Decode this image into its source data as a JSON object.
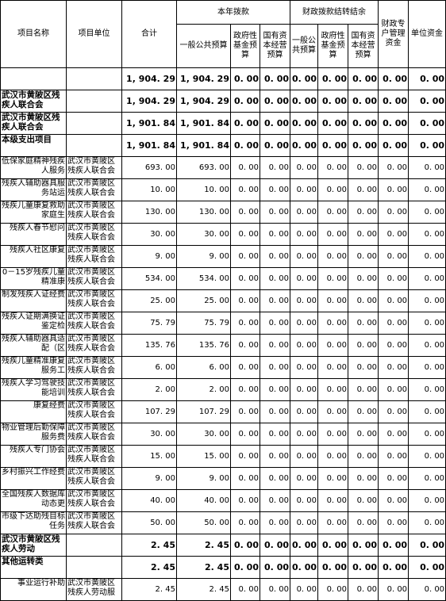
{
  "headers": {
    "project_name": "项目名称",
    "project_unit": "项目单位",
    "total": "合计",
    "current_year": "本年拨款",
    "carryover": "财政拨款结转结余",
    "general_budget": "一般公共预算",
    "gov_fund": "政府性基金预算",
    "state_capital": "国有资本经营预算",
    "carry_general": "一般公共预算",
    "carry_gov_fund": "政府性基金预算",
    "carry_state_capital": "国有资本经营预算",
    "fiscal_special": "财政专户管理资金",
    "unit_fund": "单位资金"
  },
  "rows": [
    {
      "kind": "total",
      "name": "",
      "unit": "",
      "total": "1, 904. 29",
      "general": "1, 904. 29",
      "c3": "0. 00",
      "c4": "0. 00",
      "c5": "0. 00",
      "c6": "0. 00",
      "c7": "0. 00",
      "c8": "0. 00",
      "c9": "0. 00"
    },
    {
      "kind": "group",
      "name": "武汉市黄陂区残疾人联合会",
      "unit": "",
      "total": "1, 904. 29",
      "general": "1, 904. 29",
      "c3": "0. 00",
      "c4": "0. 00",
      "c5": "0. 00",
      "c6": "0. 00",
      "c7": "0. 00",
      "c8": "0. 00",
      "c9": "0. 00"
    },
    {
      "kind": "group",
      "name": "武汉市黄陂区残疾人联合会",
      "unit": "",
      "total": "1, 901. 84",
      "general": "1, 901. 84",
      "c3": "0. 00",
      "c4": "0. 00",
      "c5": "0. 00",
      "c6": "0. 00",
      "c7": "0. 00",
      "c8": "0. 00",
      "c9": "0. 00"
    },
    {
      "kind": "group",
      "name": "本级支出项目",
      "unit": "",
      "total": "1, 901. 84",
      "general": "1, 901. 84",
      "c3": "0. 00",
      "c4": "0. 00",
      "c5": "0. 00",
      "c6": "0. 00",
      "c7": "0. 00",
      "c8": "0. 00",
      "c9": "0. 00"
    },
    {
      "kind": "item",
      "name": "低保家庭精神残疾人服务",
      "unit": "武汉市黄陂区残疾人联合会",
      "total": "693. 00",
      "general": "693. 00",
      "c3": "0. 00",
      "c4": "0. 00",
      "c5": "0. 00",
      "c6": "0. 00",
      "c7": "0. 00",
      "c8": "0. 00",
      "c9": "0. 00"
    },
    {
      "kind": "item",
      "name": "残疾人辅助器具服务站运",
      "unit": "武汉市黄陂区残疾人联合会",
      "total": "10. 00",
      "general": "10. 00",
      "c3": "0. 00",
      "c4": "0. 00",
      "c5": "0. 00",
      "c6": "0. 00",
      "c7": "0. 00",
      "c8": "0. 00",
      "c9": "0. 00"
    },
    {
      "kind": "item",
      "name": "残疾儿童康复救助家庭生",
      "unit": "武汉市黄陂区残疾人联合会",
      "total": "130. 00",
      "general": "130. 00",
      "c3": "0. 00",
      "c4": "0. 00",
      "c5": "0. 00",
      "c6": "0. 00",
      "c7": "0. 00",
      "c8": "0. 00",
      "c9": "0. 00"
    },
    {
      "kind": "item",
      "name": "残疾人春节慰问",
      "unit": "武汉市黄陂区残疾人联合会",
      "total": "30. 00",
      "general": "30. 00",
      "c3": "0. 00",
      "c4": "0. 00",
      "c5": "0. 00",
      "c6": "0. 00",
      "c7": "0. 00",
      "c8": "0. 00",
      "c9": "0. 00"
    },
    {
      "kind": "item",
      "name": "残疾人社区康复",
      "unit": "武汉市黄陂区残疾人联合会",
      "total": "9. 00",
      "general": "9. 00",
      "c3": "0. 00",
      "c4": "0. 00",
      "c5": "0. 00",
      "c6": "0. 00",
      "c7": "0. 00",
      "c8": "0. 00",
      "c9": "0. 00"
    },
    {
      "kind": "item",
      "name": "0－15岁残疾儿童精准康",
      "unit": "武汉市黄陂区残疾人联合会",
      "total": "534. 00",
      "general": "534. 00",
      "c3": "0. 00",
      "c4": "0. 00",
      "c5": "0. 00",
      "c6": "0. 00",
      "c7": "0. 00",
      "c8": "0. 00",
      "c9": "0. 00"
    },
    {
      "kind": "item",
      "name": "制发残疾人证经费",
      "unit": "武汉市黄陂区残疾人联合会",
      "total": "25. 00",
      "general": "25. 00",
      "c3": "0. 00",
      "c4": "0. 00",
      "c5": "0. 00",
      "c6": "0. 00",
      "c7": "0. 00",
      "c8": "0. 00",
      "c9": "0. 00"
    },
    {
      "kind": "item",
      "name": "残疾人证期满换证鉴定检",
      "unit": "武汉市黄陂区残疾人联合会",
      "total": "75. 79",
      "general": "75. 79",
      "c3": "0. 00",
      "c4": "0. 00",
      "c5": "0. 00",
      "c6": "0. 00",
      "c7": "0. 00",
      "c8": "0. 00",
      "c9": "0. 00"
    },
    {
      "kind": "item",
      "name": "残疾人辅助器具适配（区",
      "unit": "武汉市黄陂区残疾人联合会",
      "total": "135. 76",
      "general": "135. 76",
      "c3": "0. 00",
      "c4": "0. 00",
      "c5": "0. 00",
      "c6": "0. 00",
      "c7": "0. 00",
      "c8": "0. 00",
      "c9": "0. 00"
    },
    {
      "kind": "item",
      "name": "残疾儿童精准康复服务工",
      "unit": "武汉市黄陂区残疾人联合会",
      "total": "6. 00",
      "general": "6. 00",
      "c3": "0. 00",
      "c4": "0. 00",
      "c5": "0. 00",
      "c6": "0. 00",
      "c7": "0. 00",
      "c8": "0. 00",
      "c9": "0. 00"
    },
    {
      "kind": "item",
      "name": "残疾人学习驾驶技能培训",
      "unit": "武汉市黄陂区残疾人联合会",
      "total": "2. 00",
      "general": "2. 00",
      "c3": "0. 00",
      "c4": "0. 00",
      "c5": "0. 00",
      "c6": "0. 00",
      "c7": "0. 00",
      "c8": "0. 00",
      "c9": "0. 00"
    },
    {
      "kind": "item",
      "name": "康复经费",
      "unit": "武汉市黄陂区残疾人联合会",
      "total": "107. 29",
      "general": "107. 29",
      "c3": "0. 00",
      "c4": "0. 00",
      "c5": "0. 00",
      "c6": "0. 00",
      "c7": "0. 00",
      "c8": "0. 00",
      "c9": "0. 00"
    },
    {
      "kind": "item",
      "name": "物业管理后勤保障服务费",
      "unit": "武汉市黄陂区残疾人联合会",
      "total": "30. 00",
      "general": "30. 00",
      "c3": "0. 00",
      "c4": "0. 00",
      "c5": "0. 00",
      "c6": "0. 00",
      "c7": "0. 00",
      "c8": "0. 00",
      "c9": "0. 00"
    },
    {
      "kind": "item",
      "name": "残疾人专门协会",
      "unit": "武汉市黄陂区残疾人联合会",
      "total": "15. 00",
      "general": "15. 00",
      "c3": "0. 00",
      "c4": "0. 00",
      "c5": "0. 00",
      "c6": "0. 00",
      "c7": "0. 00",
      "c8": "0. 00",
      "c9": "0. 00"
    },
    {
      "kind": "item",
      "name": "乡村振兴工作经费",
      "unit": "武汉市黄陂区残疾人联合会",
      "total": "9. 00",
      "general": "9. 00",
      "c3": "0. 00",
      "c4": "0. 00",
      "c5": "0. 00",
      "c6": "0. 00",
      "c7": "0. 00",
      "c8": "0. 00",
      "c9": "0. 00"
    },
    {
      "kind": "item",
      "name": "全国残疾人数据库动态更",
      "unit": "武汉市黄陂区残疾人联合会",
      "total": "40. 00",
      "general": "40. 00",
      "c3": "0. 00",
      "c4": "0. 00",
      "c5": "0. 00",
      "c6": "0. 00",
      "c7": "0. 00",
      "c8": "0. 00",
      "c9": "0. 00"
    },
    {
      "kind": "item",
      "name": "市级下达助残目标任务",
      "unit": "武汉市黄陂区残疾人联合会",
      "total": "50. 00",
      "general": "50. 00",
      "c3": "0. 00",
      "c4": "0. 00",
      "c5": "0. 00",
      "c6": "0. 00",
      "c7": "0. 00",
      "c8": "0. 00",
      "c9": "0. 00"
    },
    {
      "kind": "group",
      "name": "武汉市黄陂区残疾人劳动",
      "unit": "",
      "total": "2. 45",
      "general": "2. 45",
      "c3": "0. 00",
      "c4": "0. 00",
      "c5": "0. 00",
      "c6": "0. 00",
      "c7": "0. 00",
      "c8": "0. 00",
      "c9": "0. 00"
    },
    {
      "kind": "group",
      "name": "其他运转类",
      "unit": "",
      "total": "2. 45",
      "general": "2. 45",
      "c3": "0. 00",
      "c4": "0. 00",
      "c5": "0. 00",
      "c6": "0. 00",
      "c7": "0. 00",
      "c8": "0. 00",
      "c9": "0. 00"
    },
    {
      "kind": "item",
      "name": "事业运行补助",
      "unit": "武汉市黄陂区残疾人劳动服",
      "total": "2. 45",
      "general": "2. 45",
      "c3": "0. 00",
      "c4": "0. 00",
      "c5": "0. 00",
      "c6": "0. 00",
      "c7": "0. 00",
      "c8": "0. 00",
      "c9": "0. 00"
    }
  ]
}
